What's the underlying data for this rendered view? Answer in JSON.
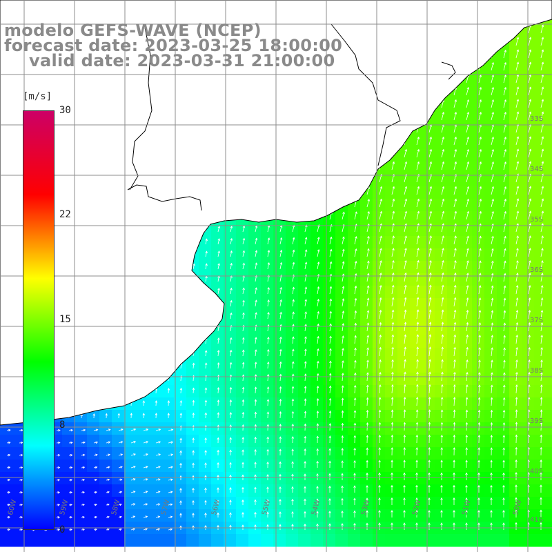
{
  "title": {
    "line1": "modelo GEFS-WAVE (NCEP)",
    "line2": "forecast date: 2023-03-25 18:00:00",
    "line3": "valid date: 2023-03-31 21:00:00"
  },
  "colorbar": {
    "unit": "[m/s]",
    "min": 0,
    "max": 30,
    "ticks": [
      "30",
      "22",
      "15",
      "8",
      "0"
    ],
    "colors": [
      "#0000ff",
      "#00ffff",
      "#00ff00",
      "#ffff00",
      "#ff0000",
      "#cc0066"
    ]
  },
  "map": {
    "lat_labels": [
      "33S",
      "34S",
      "35S",
      "36S",
      "37S",
      "38S",
      "39S",
      "40S",
      "41S"
    ],
    "lon_labels": [
      "60W",
      "59W",
      "58W",
      "57W",
      "56W",
      "55W",
      "54W",
      "53W",
      "52W",
      "51W",
      "50W"
    ],
    "land_color": "#ffffff",
    "coast_color": "#000000",
    "grid_color": "#8c8c8c"
  }
}
